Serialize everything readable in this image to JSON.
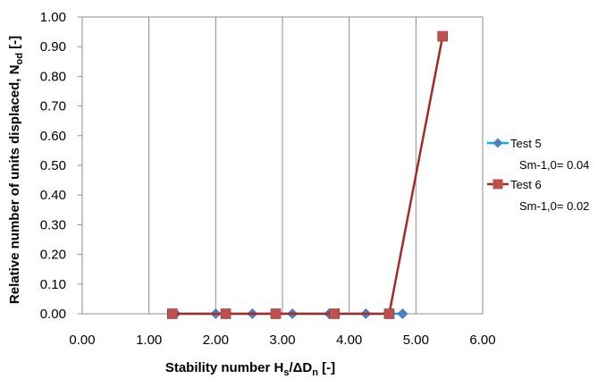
{
  "chart_data": {
    "type": "line",
    "xlabel": {
      "main": "Stability number H",
      "sub1": "s",
      "mid": "/ΔD",
      "sub2": "n",
      "tail": " [-]"
    },
    "ylabel": {
      "main": "Relative number of  units displaced, N",
      "sub": "od",
      "tail": " [-]"
    },
    "xlim": [
      0,
      6
    ],
    "ylim": [
      0,
      1
    ],
    "x_ticks": [
      "0.00",
      "1.00",
      "2.00",
      "3.00",
      "4.00",
      "5.00",
      "6.00"
    ],
    "y_ticks": [
      "0.00",
      "0.10",
      "0.20",
      "0.30",
      "0.40",
      "0.50",
      "0.60",
      "0.70",
      "0.80",
      "0.90",
      "1.00"
    ],
    "grid": "vertical",
    "legend_position": "right",
    "series": [
      {
        "name": "Test 5",
        "name_line2": "Sm-1,0= 0.04",
        "color": "#4F81BD",
        "line_color": "#00B0F0",
        "marker": "diamond",
        "x": [
          1.4,
          2.0,
          2.55,
          3.15,
          3.7,
          4.25,
          4.8
        ],
        "y": [
          0,
          0,
          0,
          0,
          0,
          0,
          0
        ]
      },
      {
        "name": "Test 6",
        "name_line2": "Sm-1,0= 0.02",
        "color": "#C0504D",
        "line_color": "#A52A2A",
        "marker": "square",
        "x": [
          1.35,
          2.15,
          2.9,
          3.78,
          4.6,
          5.4
        ],
        "y": [
          0,
          0,
          0,
          0,
          0,
          0.935
        ]
      }
    ]
  }
}
